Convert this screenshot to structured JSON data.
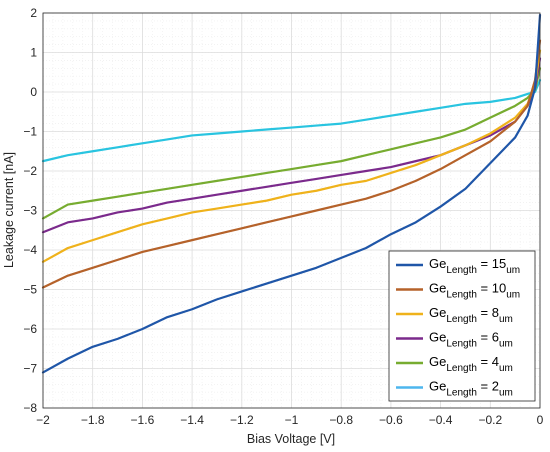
{
  "chart_data": {
    "type": "line",
    "xlabel": "Bias Voltage [V]",
    "ylabel": "Leakage current [nA]",
    "xlim": [
      -2,
      0
    ],
    "ylim": [
      -8,
      2
    ],
    "x_ticks": [
      "−2",
      "−1.8",
      "−1.6",
      "−1.4",
      "−1.2",
      "−1",
      "−0.8",
      "−0.6",
      "−0.4",
      "−0.2",
      "0"
    ],
    "y_ticks": [
      "2",
      "1",
      "0",
      "−1",
      "−2",
      "−3",
      "−4",
      "−5",
      "−6",
      "−7",
      "−8"
    ],
    "grid": true,
    "minor_grid": true,
    "legend_position": "bottom-right",
    "x": [
      -2.0,
      -1.9,
      -1.8,
      -1.7,
      -1.6,
      -1.5,
      -1.4,
      -1.3,
      -1.2,
      -1.1,
      -1.0,
      -0.9,
      -0.8,
      -0.7,
      -0.6,
      -0.5,
      -0.4,
      -0.3,
      -0.2,
      -0.1,
      -0.05,
      -0.02,
      0.0
    ],
    "series": [
      {
        "legend_main": "Ge",
        "legend_sub": "Length",
        "legend_eq": " = 15",
        "legend_unit": "um",
        "color": "#1f56a8",
        "values": [
          -7.1,
          -6.75,
          -6.45,
          -6.25,
          -6.0,
          -5.7,
          -5.5,
          -5.25,
          -5.05,
          -4.85,
          -4.65,
          -4.45,
          -4.2,
          -3.95,
          -3.6,
          -3.3,
          -2.9,
          -2.45,
          -1.8,
          -1.15,
          -0.6,
          0.1,
          1.95
        ]
      },
      {
        "legend_main": "Ge",
        "legend_sub": "Length",
        "legend_eq": " = 10",
        "legend_unit": "um",
        "color": "#b5622a",
        "values": [
          -4.95,
          -4.65,
          -4.45,
          -4.25,
          -4.05,
          -3.9,
          -3.75,
          -3.6,
          -3.45,
          -3.3,
          -3.15,
          -3.0,
          -2.85,
          -2.7,
          -2.5,
          -2.25,
          -1.95,
          -1.6,
          -1.25,
          -0.75,
          -0.35,
          0.3,
          1.3
        ]
      },
      {
        "legend_main": "Ge",
        "legend_sub": "Length",
        "legend_eq": " = 8",
        "legend_unit": "um",
        "color": "#efb21b",
        "values": [
          -4.3,
          -3.95,
          -3.75,
          -3.55,
          -3.35,
          -3.2,
          -3.05,
          -2.95,
          -2.85,
          -2.75,
          -2.6,
          -2.5,
          -2.35,
          -2.25,
          -2.05,
          -1.85,
          -1.6,
          -1.35,
          -1.05,
          -0.65,
          -0.3,
          0.2,
          1.05
        ]
      },
      {
        "legend_main": "Ge",
        "legend_sub": "Length",
        "legend_eq": " = 6",
        "legend_unit": "um",
        "color": "#7b2a8c",
        "values": [
          -3.55,
          -3.3,
          -3.2,
          -3.05,
          -2.95,
          -2.8,
          -2.7,
          -2.6,
          -2.5,
          -2.4,
          -2.3,
          -2.2,
          -2.1,
          -2.0,
          -1.9,
          -1.75,
          -1.6,
          -1.35,
          -1.1,
          -0.75,
          -0.35,
          0.1,
          0.85
        ]
      },
      {
        "legend_main": "Ge",
        "legend_sub": "Length",
        "legend_eq": " = 4",
        "legend_unit": "um",
        "color": "#77ac30",
        "values": [
          -3.2,
          -2.85,
          -2.75,
          -2.65,
          -2.55,
          -2.45,
          -2.35,
          -2.25,
          -2.15,
          -2.05,
          -1.95,
          -1.85,
          -1.75,
          -1.6,
          -1.45,
          -1.3,
          -1.15,
          -0.95,
          -0.65,
          -0.35,
          -0.15,
          0.05,
          0.6
        ]
      },
      {
        "legend_main": "Ge",
        "legend_sub": "Length",
        "legend_eq": " = 2",
        "legend_unit": "um",
        "color": "#29c4e0",
        "legend_color": "#4db6ee",
        "values": [
          -1.75,
          -1.6,
          -1.5,
          -1.4,
          -1.3,
          -1.2,
          -1.1,
          -1.05,
          -1.0,
          -0.95,
          -0.9,
          -0.85,
          -0.8,
          -0.7,
          -0.6,
          -0.5,
          -0.4,
          -0.3,
          -0.25,
          -0.15,
          -0.05,
          0.0,
          0.3
        ]
      }
    ]
  }
}
